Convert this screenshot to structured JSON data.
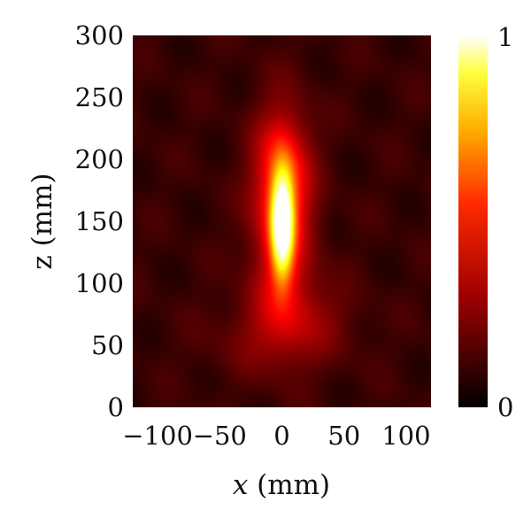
{
  "chart_data": {
    "type": "heatmap",
    "xlabel_var": "x",
    "xlabel_unit": " (mm)",
    "ylabel": "z (mm)",
    "x_range": [
      -120,
      120
    ],
    "y_range": [
      0,
      300
    ],
    "x_ticks": [
      -100,
      -50,
      0,
      50,
      100
    ],
    "x_tick_labels": [
      "−100",
      "−50",
      "0",
      "50",
      "100"
    ],
    "y_ticks": [
      0,
      50,
      100,
      150,
      200,
      250,
      300
    ],
    "y_tick_labels": [
      "0",
      "50",
      "100",
      "150",
      "200",
      "250",
      "300"
    ],
    "colorbar": {
      "min": 0,
      "max": 1,
      "min_label": "0",
      "max_label": "1",
      "colormap": "hot"
    },
    "background_level": 0.08,
    "features": [
      {
        "x": 0,
        "z": 148,
        "sigma_x": 6,
        "sigma_z": 28,
        "amplitude": 0.88
      },
      {
        "x": 0,
        "z": 150,
        "sigma_x": 17,
        "sigma_z": 55,
        "amplitude": 0.32
      },
      {
        "x": 0,
        "z": 195,
        "sigma_x": 14,
        "sigma_z": 30,
        "amplitude": 0.18
      },
      {
        "x": 10,
        "z": 75,
        "sigma_x": 30,
        "sigma_z": 22,
        "amplitude": 0.12
      },
      {
        "x": -10,
        "z": 50,
        "sigma_x": 40,
        "sigma_z": 20,
        "amplitude": 0.06
      }
    ]
  }
}
